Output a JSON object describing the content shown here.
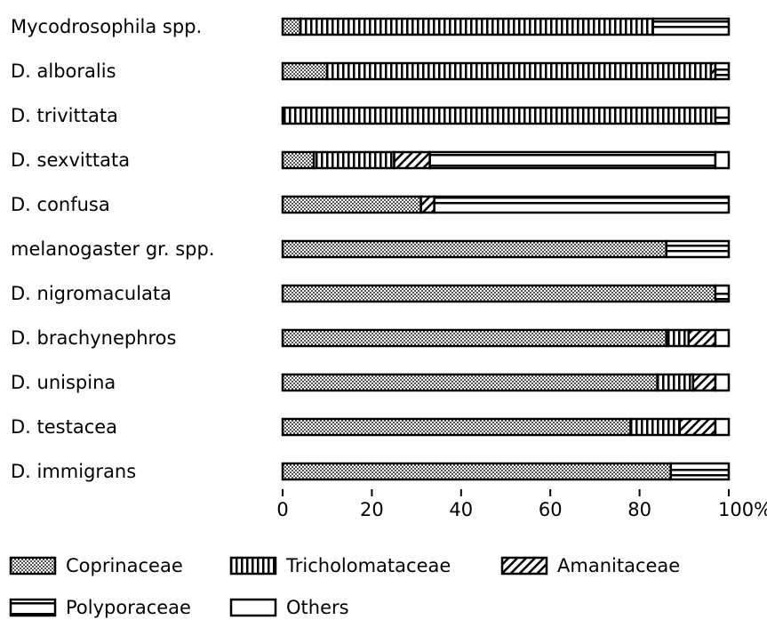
{
  "chart_data": {
    "type": "stacked-bar-horizontal",
    "categories": [
      "Mycodrosophila spp.",
      "D. alboralis",
      "D. trivittata",
      "D. sexvittata",
      "D. confusa",
      "melanogaster gr. spp.",
      "D. nigromaculata",
      "D. brachynephros",
      "D. unispina",
      "D. testacea",
      "D. immigrans"
    ],
    "series": [
      {
        "name": "Coprinaceae",
        "values": [
          4,
          10,
          0,
          7,
          31,
          86,
          97,
          86,
          84,
          78,
          87
        ]
      },
      {
        "name": "Tricholomataceae",
        "values": [
          79,
          86,
          97,
          18,
          0,
          0,
          0,
          5,
          8,
          11,
          0
        ]
      },
      {
        "name": "Amanitaceae",
        "values": [
          0,
          1,
          0,
          8,
          3,
          0,
          0,
          6,
          5,
          8,
          0
        ]
      },
      {
        "name": "Polyporaceae",
        "values": [
          17,
          3,
          3,
          64,
          66,
          14,
          3,
          0,
          0,
          0,
          13
        ]
      },
      {
        "name": "Others",
        "values": [
          0,
          0,
          0,
          3,
          0,
          0,
          0,
          3,
          3,
          3,
          0
        ]
      }
    ],
    "xlim": [
      0,
      100
    ],
    "xticks": [
      0,
      20,
      40,
      60,
      80,
      {
        "value": 100,
        "label": "100%"
      }
    ]
  }
}
